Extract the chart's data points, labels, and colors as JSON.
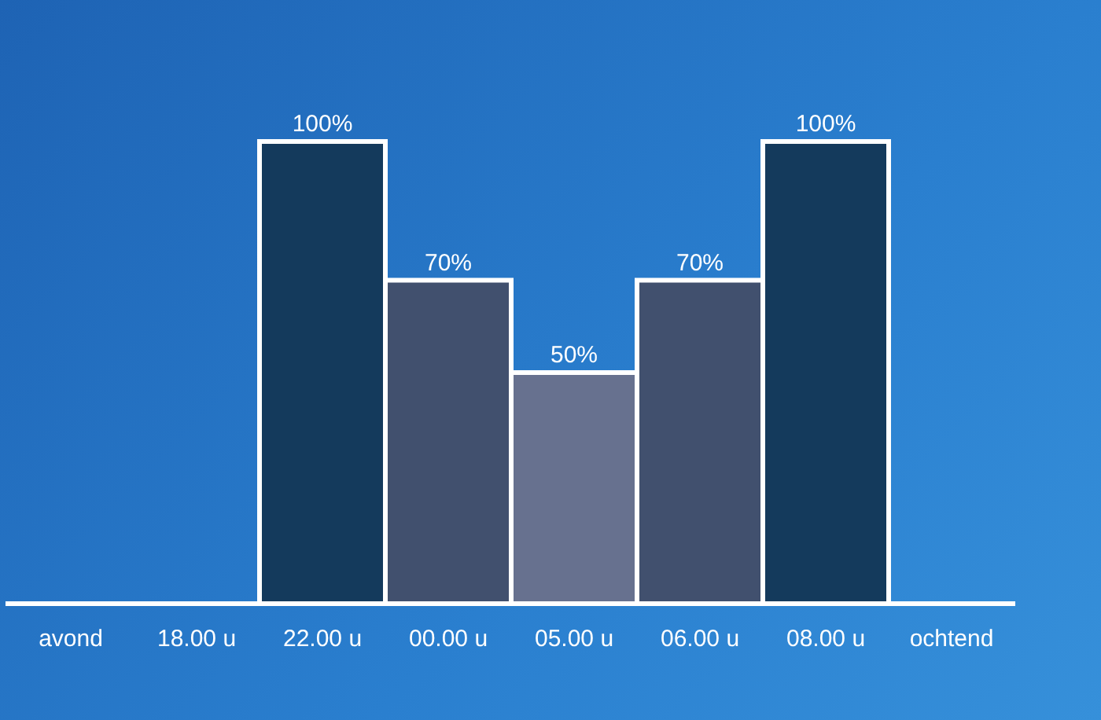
{
  "chart_data": {
    "type": "bar",
    "categories": [
      "avond",
      "18.00 u",
      "22.00 u",
      "00.00 u",
      "05.00 u",
      "06.00 u",
      "08.00 u",
      "ochtend"
    ],
    "values": [
      null,
      null,
      100,
      70,
      50,
      70,
      100,
      null
    ],
    "colors": [
      "#143a5c",
      "#143a5c",
      "#143a5c",
      "#41506e",
      "#67718f",
      "#41506e",
      "#143a5c",
      "#143a5c"
    ],
    "value_labels": [
      null,
      null,
      "100%",
      "70%",
      "50%",
      "70%",
      "100%",
      null
    ]
  }
}
